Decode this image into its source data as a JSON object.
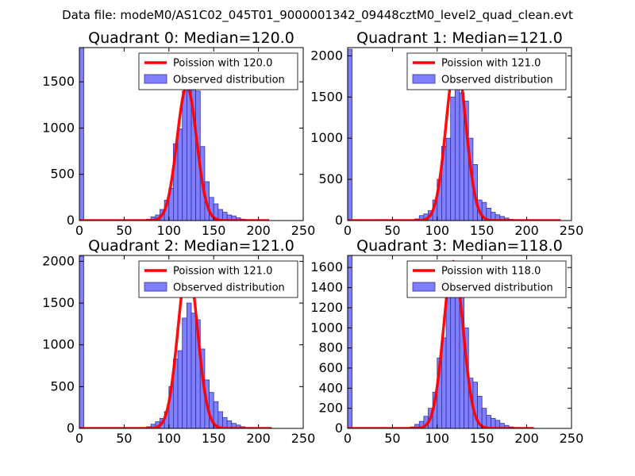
{
  "figure": {
    "suptitle": "Data file: modeM0/AS1C02_045T01_9000001342_09448cztM0_level2_quad_clean.evt"
  },
  "chart_data": [
    {
      "type": "bar",
      "title": "Quadrant 0: Median=120.0",
      "legend": [
        "Poission with 120.0",
        "Observed distribution"
      ],
      "legend_position": "top-right",
      "xlim": [
        0,
        250
      ],
      "ylim": [
        0,
        1870
      ],
      "xticks": [
        "0",
        "50",
        "100",
        "150",
        "200",
        "250"
      ],
      "yticks": [
        0,
        500,
        1000,
        1500
      ],
      "ytick_labels": [
        "0",
        "500",
        "1000",
        "1500"
      ],
      "bin_width": 5,
      "bins": [
        {
          "x": 0,
          "y": 1870
        },
        {
          "x": 75,
          "y": 15
        },
        {
          "x": 80,
          "y": 40
        },
        {
          "x": 85,
          "y": 60
        },
        {
          "x": 90,
          "y": 120
        },
        {
          "x": 95,
          "y": 220
        },
        {
          "x": 100,
          "y": 350
        },
        {
          "x": 105,
          "y": 830
        },
        {
          "x": 110,
          "y": 990
        },
        {
          "x": 115,
          "y": 1400
        },
        {
          "x": 120,
          "y": 1420
        },
        {
          "x": 125,
          "y": 1420
        },
        {
          "x": 130,
          "y": 1400
        },
        {
          "x": 135,
          "y": 800
        },
        {
          "x": 140,
          "y": 420
        },
        {
          "x": 145,
          "y": 250
        },
        {
          "x": 150,
          "y": 180
        },
        {
          "x": 155,
          "y": 120
        },
        {
          "x": 160,
          "y": 90
        },
        {
          "x": 165,
          "y": 60
        },
        {
          "x": 170,
          "y": 50
        },
        {
          "x": 175,
          "y": 30
        },
        {
          "x": 180,
          "y": 15
        },
        {
          "x": 185,
          "y": 8
        },
        {
          "x": 190,
          "y": 5
        },
        {
          "x": 195,
          "y": 3
        },
        {
          "x": 200,
          "y": 2
        },
        {
          "x": 205,
          "y": 1
        }
      ],
      "poisson": {
        "mu": 120.0,
        "peak": 1450,
        "x_range": [
          0,
          212
        ]
      }
    },
    {
      "type": "bar",
      "title": "Quadrant 1: Median=121.0",
      "legend": [
        "Poission with 121.0",
        "Observed distribution"
      ],
      "legend_position": "top-right",
      "xlim": [
        0,
        250
      ],
      "ylim": [
        0,
        2100
      ],
      "xticks": [
        "0",
        "50",
        "100",
        "150",
        "200",
        "250"
      ],
      "yticks": [
        0,
        500,
        1000,
        1500,
        2000
      ],
      "ytick_labels": [
        "0",
        "500",
        "1000",
        "1500",
        "2000"
      ],
      "bin_width": 5,
      "bins": [
        {
          "x": 0,
          "y": 2080
        },
        {
          "x": 35,
          "y": 10
        },
        {
          "x": 75,
          "y": 20
        },
        {
          "x": 80,
          "y": 60
        },
        {
          "x": 85,
          "y": 80
        },
        {
          "x": 90,
          "y": 120
        },
        {
          "x": 95,
          "y": 250
        },
        {
          "x": 100,
          "y": 500
        },
        {
          "x": 105,
          "y": 900
        },
        {
          "x": 110,
          "y": 1000
        },
        {
          "x": 115,
          "y": 1500
        },
        {
          "x": 120,
          "y": 1650
        },
        {
          "x": 125,
          "y": 1550
        },
        {
          "x": 130,
          "y": 1450
        },
        {
          "x": 135,
          "y": 1000
        },
        {
          "x": 140,
          "y": 680
        },
        {
          "x": 145,
          "y": 250
        },
        {
          "x": 150,
          "y": 220
        },
        {
          "x": 155,
          "y": 150
        },
        {
          "x": 160,
          "y": 100
        },
        {
          "x": 165,
          "y": 70
        },
        {
          "x": 170,
          "y": 50
        },
        {
          "x": 175,
          "y": 30
        },
        {
          "x": 180,
          "y": 15
        },
        {
          "x": 185,
          "y": 8
        },
        {
          "x": 190,
          "y": 5
        },
        {
          "x": 195,
          "y": 3
        }
      ],
      "poisson": {
        "mu": 121.0,
        "peak": 1950,
        "x_range": [
          0,
          238
        ]
      }
    },
    {
      "type": "bar",
      "title": "Quadrant 2: Median=121.0",
      "legend": [
        "Poission with 121.0",
        "Observed distribution"
      ],
      "legend_position": "top-right",
      "xlim": [
        0,
        250
      ],
      "ylim": [
        0,
        2070
      ],
      "xticks": [
        "0",
        "50",
        "100",
        "150",
        "200",
        "250"
      ],
      "yticks": [
        0,
        500,
        1000,
        1500,
        2000
      ],
      "ytick_labels": [
        "0",
        "500",
        "1000",
        "1500",
        "2000"
      ],
      "bin_width": 5,
      "bins": [
        {
          "x": 0,
          "y": 2060
        },
        {
          "x": 75,
          "y": 20
        },
        {
          "x": 80,
          "y": 50
        },
        {
          "x": 85,
          "y": 80
        },
        {
          "x": 90,
          "y": 120
        },
        {
          "x": 95,
          "y": 200
        },
        {
          "x": 100,
          "y": 500
        },
        {
          "x": 105,
          "y": 830
        },
        {
          "x": 110,
          "y": 930
        },
        {
          "x": 115,
          "y": 1320
        },
        {
          "x": 120,
          "y": 1500
        },
        {
          "x": 125,
          "y": 1380
        },
        {
          "x": 130,
          "y": 1300
        },
        {
          "x": 135,
          "y": 950
        },
        {
          "x": 140,
          "y": 580
        },
        {
          "x": 145,
          "y": 430
        },
        {
          "x": 150,
          "y": 320
        },
        {
          "x": 155,
          "y": 200
        },
        {
          "x": 160,
          "y": 130
        },
        {
          "x": 165,
          "y": 90
        },
        {
          "x": 170,
          "y": 60
        },
        {
          "x": 175,
          "y": 40
        },
        {
          "x": 180,
          "y": 20
        },
        {
          "x": 185,
          "y": 10
        },
        {
          "x": 190,
          "y": 5
        },
        {
          "x": 195,
          "y": 3
        }
      ],
      "poisson": {
        "mu": 121.0,
        "peak": 1950,
        "x_range": [
          0,
          215
        ]
      }
    },
    {
      "type": "bar",
      "title": "Quadrant 3: Median=118.0",
      "legend": [
        "Poission with 118.0",
        "Observed distribution"
      ],
      "legend_position": "top-right",
      "xlim": [
        0,
        250
      ],
      "ylim": [
        0,
        1720
      ],
      "xticks": [
        "0",
        "50",
        "100",
        "150",
        "200",
        "250"
      ],
      "yticks": [
        0,
        200,
        400,
        600,
        800,
        1000,
        1200,
        1400,
        1600
      ],
      "ytick_labels": [
        "0",
        "200",
        "400",
        "600",
        "800",
        "1000",
        "1200",
        "1400",
        "1600"
      ],
      "bin_width": 5,
      "bins": [
        {
          "x": 0,
          "y": 1720
        },
        {
          "x": 70,
          "y": 15
        },
        {
          "x": 75,
          "y": 40
        },
        {
          "x": 80,
          "y": 70
        },
        {
          "x": 85,
          "y": 120
        },
        {
          "x": 90,
          "y": 200
        },
        {
          "x": 95,
          "y": 360
        },
        {
          "x": 100,
          "y": 700
        },
        {
          "x": 105,
          "y": 900
        },
        {
          "x": 110,
          "y": 1380
        },
        {
          "x": 115,
          "y": 1570
        },
        {
          "x": 120,
          "y": 1530
        },
        {
          "x": 125,
          "y": 1320
        },
        {
          "x": 130,
          "y": 1000
        },
        {
          "x": 135,
          "y": 500
        },
        {
          "x": 140,
          "y": 460
        },
        {
          "x": 145,
          "y": 320
        },
        {
          "x": 150,
          "y": 200
        },
        {
          "x": 155,
          "y": 130
        },
        {
          "x": 160,
          "y": 100
        },
        {
          "x": 165,
          "y": 80
        },
        {
          "x": 170,
          "y": 50
        },
        {
          "x": 175,
          "y": 30
        },
        {
          "x": 180,
          "y": 15
        },
        {
          "x": 185,
          "y": 8
        },
        {
          "x": 190,
          "y": 4
        }
      ],
      "poisson": {
        "mu": 118.0,
        "peak": 1660,
        "x_range": [
          0,
          208
        ]
      }
    }
  ],
  "style": {
    "bar_fill": "#8080ff",
    "bar_stroke": "#3030a0",
    "line_color": "#ff0000",
    "axis_color": "#000000",
    "background": "#ffffff"
  }
}
